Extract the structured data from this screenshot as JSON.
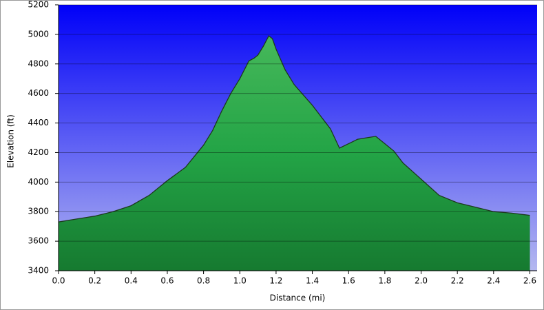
{
  "chart_data": {
    "type": "area",
    "x_label": "Distance   (mi)",
    "y_label": "Elevation (ft)",
    "x": [
      0.0,
      0.1,
      0.2,
      0.3,
      0.4,
      0.5,
      0.55,
      0.6,
      0.7,
      0.8,
      0.85,
      0.9,
      0.95,
      1.0,
      1.05,
      1.08,
      1.1,
      1.13,
      1.16,
      1.18,
      1.2,
      1.25,
      1.3,
      1.4,
      1.5,
      1.55,
      1.6,
      1.65,
      1.7,
      1.75,
      1.8,
      1.85,
      1.9,
      2.0,
      2.1,
      2.2,
      2.3,
      2.4,
      2.5,
      2.6
    ],
    "values": [
      3730,
      3750,
      3770,
      3800,
      3840,
      3910,
      3960,
      4010,
      4100,
      4250,
      4350,
      4480,
      4600,
      4700,
      4820,
      4840,
      4860,
      4920,
      4990,
      4970,
      4900,
      4760,
      4660,
      4520,
      4360,
      4230,
      4260,
      4290,
      4300,
      4310,
      4260,
      4210,
      4130,
      4020,
      3910,
      3860,
      3830,
      3800,
      3790,
      3775
    ],
    "color": "#23a446",
    "xlim": [
      0,
      2.64
    ],
    "ylim": [
      3400,
      5200
    ],
    "xticks": [
      {
        "value": 0,
        "label": "0.0"
      },
      0.2,
      0.4,
      0.6,
      0.8,
      {
        "value": 1,
        "label": "1.0"
      },
      1.2,
      1.4,
      1.6,
      1.8,
      {
        "value": 2,
        "label": "2.0"
      },
      2.2,
      2.4,
      2.6
    ],
    "yticks": [
      3400,
      3600,
      3800,
      4000,
      4200,
      4400,
      4600,
      4800,
      5000,
      5200
    ],
    "grid": true
  }
}
